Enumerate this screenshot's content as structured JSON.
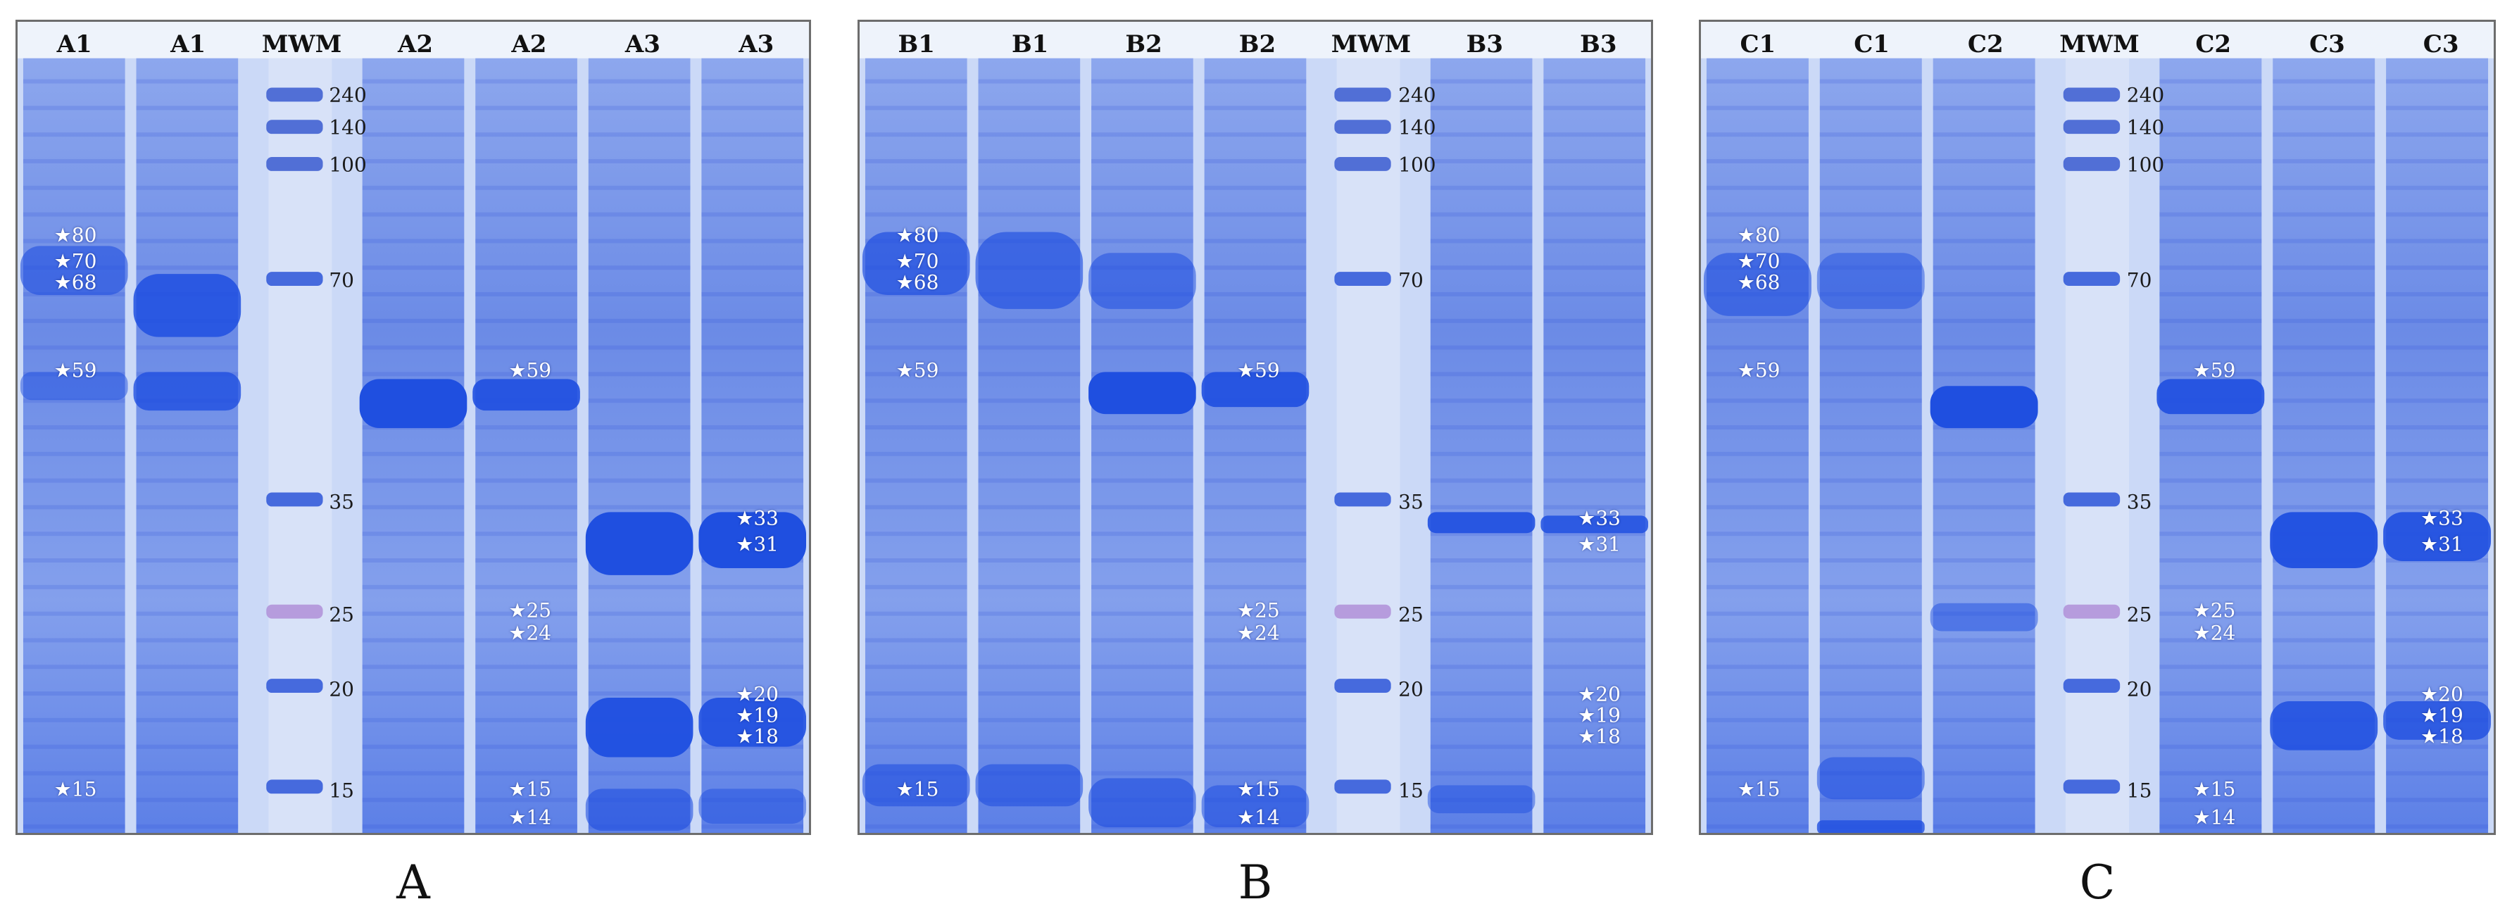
{
  "colors": {
    "gel_blue": "#1f4fe0",
    "gel_light": "#c7d6f6",
    "star": "#ffffff"
  },
  "icons": {
    "star": "star-icon"
  },
  "panels": [
    {
      "id": "A",
      "caption": "A",
      "lanes": [
        "A1",
        "A1",
        "MWM",
        "A2",
        "A2",
        "A3",
        "A3"
      ],
      "mwm_lane": 2,
      "markers": [
        "240",
        "140",
        "100",
        "70",
        "35",
        "25",
        "20",
        "15"
      ],
      "star_groups": [
        {
          "lane": 0,
          "labels": [
            "80",
            "70",
            "68",
            "59",
            "15"
          ]
        },
        {
          "lane": 4,
          "labels": [
            "59",
            "25",
            "24",
            "15",
            "14"
          ]
        },
        {
          "lane": 6,
          "labels": [
            "33",
            "31",
            "20",
            "19",
            "18"
          ]
        }
      ]
    },
    {
      "id": "B",
      "caption": "B",
      "lanes": [
        "B1",
        "B1",
        "B2",
        "B2",
        "MWM",
        "B3",
        "B3"
      ],
      "mwm_lane": 4,
      "markers": [
        "240",
        "140",
        "100",
        "70",
        "35",
        "25",
        "20",
        "15"
      ],
      "star_groups": [
        {
          "lane": 0,
          "labels": [
            "80",
            "70",
            "68",
            "59",
            "15"
          ]
        },
        {
          "lane": 3,
          "labels": [
            "59",
            "25",
            "24",
            "15",
            "14"
          ]
        },
        {
          "lane": 6,
          "labels": [
            "33",
            "31",
            "20",
            "19",
            "18"
          ]
        }
      ]
    },
    {
      "id": "C",
      "caption": "C",
      "lanes": [
        "C1",
        "C1",
        "C2",
        "MWM",
        "C2",
        "C3",
        "C3"
      ],
      "mwm_lane": 3,
      "markers": [
        "240",
        "140",
        "100",
        "70",
        "35",
        "25",
        "20",
        "15"
      ],
      "star_groups": [
        {
          "lane": 0,
          "labels": [
            "80",
            "70",
            "68",
            "59",
            "15"
          ]
        },
        {
          "lane": 4,
          "labels": [
            "59",
            "25",
            "24",
            "15",
            "14"
          ]
        },
        {
          "lane": 6,
          "labels": [
            "33",
            "31",
            "20",
            "19",
            "18"
          ]
        }
      ]
    }
  ]
}
